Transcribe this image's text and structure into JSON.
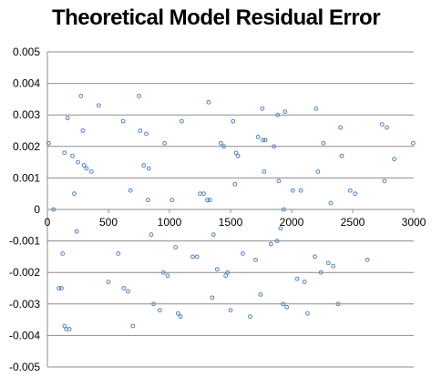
{
  "chart_data": {
    "type": "scatter",
    "title": "Theoretical Model Residual Error",
    "xlabel": "",
    "ylabel": "",
    "xlim": [
      0,
      3000
    ],
    "ylim": [
      -0.005,
      0.005
    ],
    "x_ticks": [
      "0",
      "500",
      "1000",
      "1500",
      "2000",
      "2500",
      "3000"
    ],
    "x_tick_values": [
      0,
      500,
      1000,
      1500,
      2000,
      2500,
      3000
    ],
    "y_ticks": [
      "0.005",
      "0.004",
      "0.003",
      "0.002",
      "0.001",
      "0",
      "-0.001",
      "-0.002",
      "-0.003",
      "-0.004",
      "-0.005"
    ],
    "y_tick_values": [
      0.005,
      0.004,
      0.003,
      0.002,
      0.001,
      0,
      -0.001,
      -0.002,
      -0.003,
      -0.004,
      -0.005
    ],
    "grid": "horizontal",
    "legend": "none",
    "marker_color": "#4f81bd",
    "series": [
      {
        "points": [
          [
            10,
            0.0021
          ],
          [
            50,
            0.0
          ],
          [
            95,
            -0.0025
          ],
          [
            115,
            -0.0025
          ],
          [
            125,
            -0.0014
          ],
          [
            140,
            0.0018
          ],
          [
            140,
            -0.0037
          ],
          [
            155,
            -0.0038
          ],
          [
            165,
            0.0029
          ],
          [
            180,
            -0.0038
          ],
          [
            205,
            0.0017
          ],
          [
            220,
            0.0005
          ],
          [
            240,
            -0.0007
          ],
          [
            250,
            0.0015
          ],
          [
            275,
            0.0036
          ],
          [
            290,
            0.0025
          ],
          [
            300,
            0.0014
          ],
          [
            320,
            0.0013
          ],
          [
            360,
            0.0012
          ],
          [
            420,
            0.0033
          ],
          [
            500,
            -0.0023
          ],
          [
            580,
            -0.0014
          ],
          [
            620,
            0.0028
          ],
          [
            625,
            -0.0025
          ],
          [
            660,
            -0.0026
          ],
          [
            680,
            0.0006
          ],
          [
            700,
            -0.0037
          ],
          [
            750,
            0.0036
          ],
          [
            760,
            0.0025
          ],
          [
            790,
            0.0014
          ],
          [
            810,
            0.0024
          ],
          [
            825,
            0.0003
          ],
          [
            830,
            0.0013
          ],
          [
            850,
            -0.0008
          ],
          [
            870,
            -0.003
          ],
          [
            920,
            -0.0032
          ],
          [
            950,
            -0.002
          ],
          [
            960,
            0.0021
          ],
          [
            985,
            -0.0021
          ],
          [
            1020,
            0.0003
          ],
          [
            1050,
            -0.0012
          ],
          [
            1070,
            -0.0033
          ],
          [
            1090,
            -0.0034
          ],
          [
            1100,
            0.0028
          ],
          [
            1190,
            -0.0015
          ],
          [
            1225,
            -0.0015
          ],
          [
            1250,
            0.0005
          ],
          [
            1280,
            0.0005
          ],
          [
            1310,
            0.0003
          ],
          [
            1320,
            0.0034
          ],
          [
            1330,
            0.0003
          ],
          [
            1350,
            -0.0028
          ],
          [
            1360,
            -0.0008
          ],
          [
            1390,
            -0.0019
          ],
          [
            1420,
            0.0021
          ],
          [
            1445,
            0.002
          ],
          [
            1460,
            -0.0021
          ],
          [
            1475,
            -0.002
          ],
          [
            1500,
            -0.0032
          ],
          [
            1520,
            0.0028
          ],
          [
            1535,
            0.0008
          ],
          [
            1545,
            0.0018
          ],
          [
            1560,
            0.0017
          ],
          [
            1600,
            -0.0014
          ],
          [
            1660,
            -0.0034
          ],
          [
            1705,
            -0.0016
          ],
          [
            1725,
            0.0023
          ],
          [
            1745,
            -0.0027
          ],
          [
            1760,
            0.0032
          ],
          [
            1765,
            0.0022
          ],
          [
            1775,
            0.0012
          ],
          [
            1785,
            0.0022
          ],
          [
            1830,
            -0.0011
          ],
          [
            1855,
            0.002
          ],
          [
            1880,
            -0.001
          ],
          [
            1885,
            0.003
          ],
          [
            1895,
            0.0009
          ],
          [
            1910,
            -0.0006
          ],
          [
            1930,
            -0.003
          ],
          [
            1935,
            0.0
          ],
          [
            1945,
            0.0031
          ],
          [
            1960,
            -0.0031
          ],
          [
            2010,
            0.0006
          ],
          [
            2045,
            -0.0022
          ],
          [
            2075,
            0.0006
          ],
          [
            2105,
            -0.0023
          ],
          [
            2130,
            -0.0033
          ],
          [
            2190,
            -0.0015
          ],
          [
            2200,
            0.0032
          ],
          [
            2215,
            0.0012
          ],
          [
            2240,
            -0.002
          ],
          [
            2260,
            0.0021
          ],
          [
            2300,
            -0.0017
          ],
          [
            2320,
            0.0002
          ],
          [
            2340,
            -0.0018
          ],
          [
            2380,
            -0.003
          ],
          [
            2400,
            0.0026
          ],
          [
            2410,
            0.0017
          ],
          [
            2480,
            0.0006
          ],
          [
            2520,
            0.0005
          ],
          [
            2620,
            -0.0016
          ],
          [
            2740,
            0.0027
          ],
          [
            2760,
            0.0009
          ],
          [
            2780,
            0.0026
          ],
          [
            2840,
            0.0016
          ],
          [
            2995,
            0.0021
          ]
        ]
      }
    ]
  }
}
